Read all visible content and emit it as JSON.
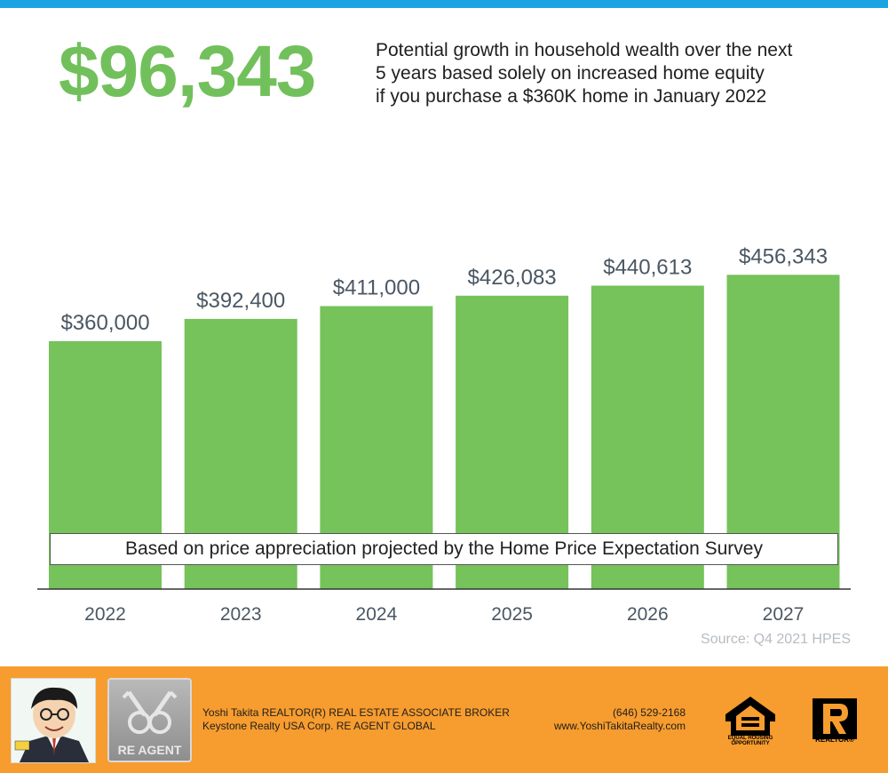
{
  "headline": "$96,343",
  "subtitle_lines": [
    "Potential growth in household wealth over the next",
    "5 years based solely on increased home equity",
    "if you purchase a $360K home in January 2022"
  ],
  "note": "Based on price appreciation projected by the Home Price Expectation Survey",
  "source": "Source: Q4 2021 HPES",
  "chart_data": {
    "type": "bar",
    "categories": [
      "2022",
      "2023",
      "2024",
      "2025",
      "2026",
      "2027"
    ],
    "values": [
      360000,
      392400,
      411000,
      426083,
      440613,
      456343
    ],
    "value_labels": [
      "$360,000",
      "$392,400",
      "$411,000",
      "$426,083",
      "$440,613",
      "$456,343"
    ],
    "title": "",
    "xlabel": "",
    "ylabel": "",
    "ylim": [
      0,
      456343
    ],
    "grid": false,
    "bar_color": "#76c25b"
  },
  "footer": {
    "agent_line1": "Yoshi Takita REALTOR(R) REAL ESTATE ASSOCIATE BROKER",
    "agent_line2": "Keystone Realty USA Corp.  RE AGENT GLOBAL",
    "phone": "(646) 529-2168",
    "website": "www.YoshiTakitaRealty.com",
    "reagent_logo": "RE AGENT",
    "eho_label": "EQUAL HOUSING OPPORTUNITY",
    "realtor_label": "REALTOR®",
    "background": "#f79c2e"
  },
  "colors": {
    "accent": "#72c05b",
    "top_bar": "#1ca3e3"
  }
}
